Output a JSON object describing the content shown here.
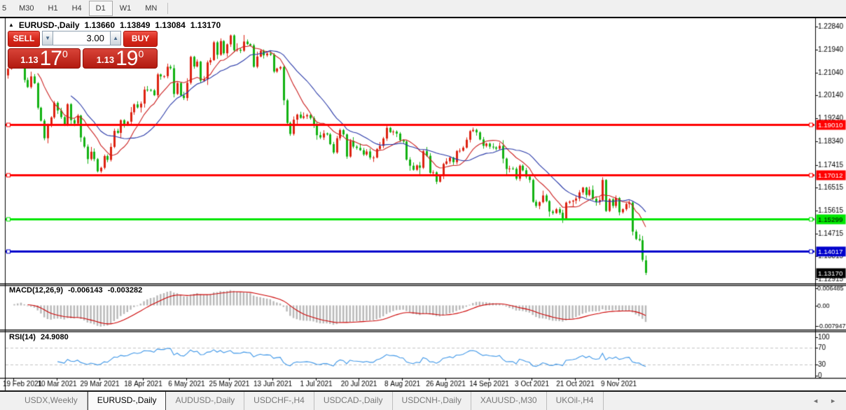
{
  "toolbar": {
    "timeframes": [
      "5",
      "M30",
      "H1",
      "H4",
      "D1",
      "W1",
      "MN"
    ],
    "active": "D1"
  },
  "chart": {
    "header": {
      "collapse_icon": "▲",
      "symbol": "EURUSD-,Daily",
      "open": "1.13660",
      "high": "1.13849",
      "low": "1.13084",
      "close": "1.13170"
    },
    "trade_panel": {
      "sell_label": "SELL",
      "buy_label": "BUY",
      "volume": "3.00",
      "spin_down_icon": "▼",
      "spin_up_icon": "▲",
      "sell_price": {
        "big_figure": "1.13",
        "pips": "17",
        "pipette": "0"
      },
      "buy_price": {
        "big_figure": "1.13",
        "pips": "19",
        "pipette": "0"
      }
    }
  },
  "macd_panel": {
    "title": "MACD(12,26,9)",
    "value_main": "-0.006143",
    "value_signal": "-0.003282",
    "scale_labels": [
      "0.006485",
      "0.00",
      "-0.007947"
    ]
  },
  "rsi_panel": {
    "title": "RSI(14)",
    "value": "24.9080",
    "scale_labels": [
      "100",
      "70",
      "30",
      "0"
    ],
    "level_lines": [
      70,
      30
    ]
  },
  "tabbar": {
    "tabs": [
      "USDX,Weekly",
      "EURUSD-,Daily",
      "AUDUSD-,Daily",
      "USDCHF-,H4",
      "USDCAD-,Daily",
      "USDCNH-,Daily",
      "XAUUSD-,M30",
      "UKOil-,H4"
    ],
    "active": "EURUSD-,Daily",
    "nav_left": "◄",
    "nav_right": "►"
  },
  "chart_data": {
    "type": "candlestick",
    "symbol": "EURUSD-,Daily",
    "title": "EURUSD Daily with MACD(12,26,9) and RSI(14)",
    "up_color": "#dd2211",
    "down_color": "#12b212",
    "ma_fast": {
      "period": 10,
      "color": "#cc2020"
    },
    "ma_slow": {
      "period": 20,
      "color": "#2838a8"
    },
    "rsi_color": "#3d96e8",
    "macd_bar_color": "#b8b8b8",
    "macd_signal_color": "#cc0000",
    "price_axis": {
      "top_price": 1.23068,
      "bottom_price": 1.12756
    },
    "y_axis_labels": [
      "1.22840",
      "1.21940",
      "1.21040",
      "1.20140",
      "1.19240",
      "1.18340",
      "1.17415",
      "1.16515",
      "1.15615",
      "1.14715",
      "1.13815",
      "1.12915"
    ],
    "x_labels": [
      "19 Feb 2021",
      "10 Mar 2021",
      "29 Mar 2021",
      "18 Apr 2021",
      "6 May 2021",
      "25 May 2021",
      "13 Jun 2021",
      "1 Jul 2021",
      "20 Jul 2021",
      "8 Aug 2021",
      "26 Aug 2021",
      "14 Sep 2021",
      "3 Oct 2021",
      "21 Oct 2021",
      "9 Nov 2021"
    ],
    "first_open": 1.2093,
    "closes": [
      1.2119,
      1.2158,
      1.215,
      1.2168,
      1.2175,
      1.2075,
      1.2047,
      1.2089,
      1.2062,
      1.1966,
      1.1915,
      1.1846,
      1.1899,
      1.1928,
      1.1985,
      1.1955,
      1.1929,
      1.1899,
      1.198,
      1.1917,
      1.1904,
      1.1935,
      1.1849,
      1.1813,
      1.1764,
      1.1793,
      1.1764,
      1.1716,
      1.173,
      1.1776,
      1.1761,
      1.1812,
      1.1875,
      1.1867,
      1.1917,
      1.1899,
      1.1911,
      1.1948,
      1.1979,
      1.1967,
      1.1982,
      1.2037,
      1.2036,
      1.2034,
      1.2015,
      1.2097,
      1.2089,
      1.209,
      1.2127,
      1.2121,
      1.202,
      1.2063,
      1.2014,
      1.2004,
      1.2064,
      1.2166,
      1.2128,
      1.2147,
      1.2072,
      1.2078,
      1.2144,
      1.2153,
      1.2223,
      1.2174,
      1.2228,
      1.218,
      1.2215,
      1.225,
      1.2192,
      1.2194,
      1.219,
      1.2226,
      1.2216,
      1.2211,
      1.2127,
      1.2167,
      1.219,
      1.2172,
      1.2179,
      1.2174,
      1.2108,
      1.212,
      1.2126,
      1.1995,
      1.1906,
      1.1863,
      1.1919,
      1.1939,
      1.1926,
      1.1932,
      1.1937,
      1.1925,
      1.1897,
      1.1858,
      1.1849,
      1.1865,
      1.1861,
      1.1823,
      1.179,
      1.1846,
      1.1878,
      1.1861,
      1.1774,
      1.1835,
      1.1813,
      1.1808,
      1.1799,
      1.1782,
      1.1794,
      1.177,
      1.177,
      1.1804,
      1.1816,
      1.1845,
      1.1887,
      1.187,
      1.1872,
      1.1864,
      1.1838,
      1.1833,
      1.1762,
      1.1738,
      1.1722,
      1.1739,
      1.173,
      1.1795,
      1.1777,
      1.171,
      1.1712,
      1.1675,
      1.1697,
      1.1745,
      1.1755,
      1.177,
      1.1752,
      1.1796,
      1.1797,
      1.1809,
      1.184,
      1.1874,
      1.1879,
      1.1869,
      1.1841,
      1.1816,
      1.1825,
      1.1813,
      1.181,
      1.1805,
      1.1816,
      1.1766,
      1.1725,
      1.1727,
      1.1726,
      1.1687,
      1.1738,
      1.172,
      1.1695,
      1.1682,
      1.1596,
      1.158,
      1.1595,
      1.1621,
      1.1599,
      1.1558,
      1.1552,
      1.1567,
      1.1553,
      1.153,
      1.1593,
      1.1597,
      1.1601,
      1.1609,
      1.1633,
      1.1652,
      1.1623,
      1.1643,
      1.1608,
      1.1596,
      1.1603,
      1.1682,
      1.156,
      1.1606,
      1.158,
      1.1611,
      1.1555,
      1.1567,
      1.1588,
      1.1593,
      1.1479,
      1.145,
      1.1445,
      1.1368,
      1.1317
    ],
    "last_candle": {
      "open": 1.1366,
      "high": 1.13849,
      "low": 1.13084,
      "close": 1.1317
    },
    "horizontal_levels": [
      {
        "price": 1.1901,
        "label": "1.19010",
        "color": "#ff0000",
        "text_color": "#ffffff",
        "width": 3
      },
      {
        "price": 1.17012,
        "label": "1.17012",
        "color": "#ff0000",
        "text_color": "#ffffff",
        "width": 3
      },
      {
        "price": 1.15299,
        "label": "1.15299",
        "color": "#00e600",
        "text_color": "#000000",
        "width": 3
      },
      {
        "price": 1.14017,
        "label": "1.14017",
        "color": "#0000cc",
        "text_color": "#ffffff",
        "width": 3
      }
    ],
    "current_price": {
      "value": 1.1317,
      "label": "1.13170",
      "bg": "#000000",
      "text_color": "#ffffff"
    },
    "macd": {
      "fast": 12,
      "slow": 26,
      "signal": 9,
      "scale_max": 0.006485,
      "scale_min": -0.007947,
      "current_main": -0.006143,
      "current_signal": -0.003282
    },
    "rsi": {
      "period": 14,
      "current": 24.908,
      "scale": [
        0,
        100
      ],
      "levels": [
        70,
        30
      ]
    }
  }
}
